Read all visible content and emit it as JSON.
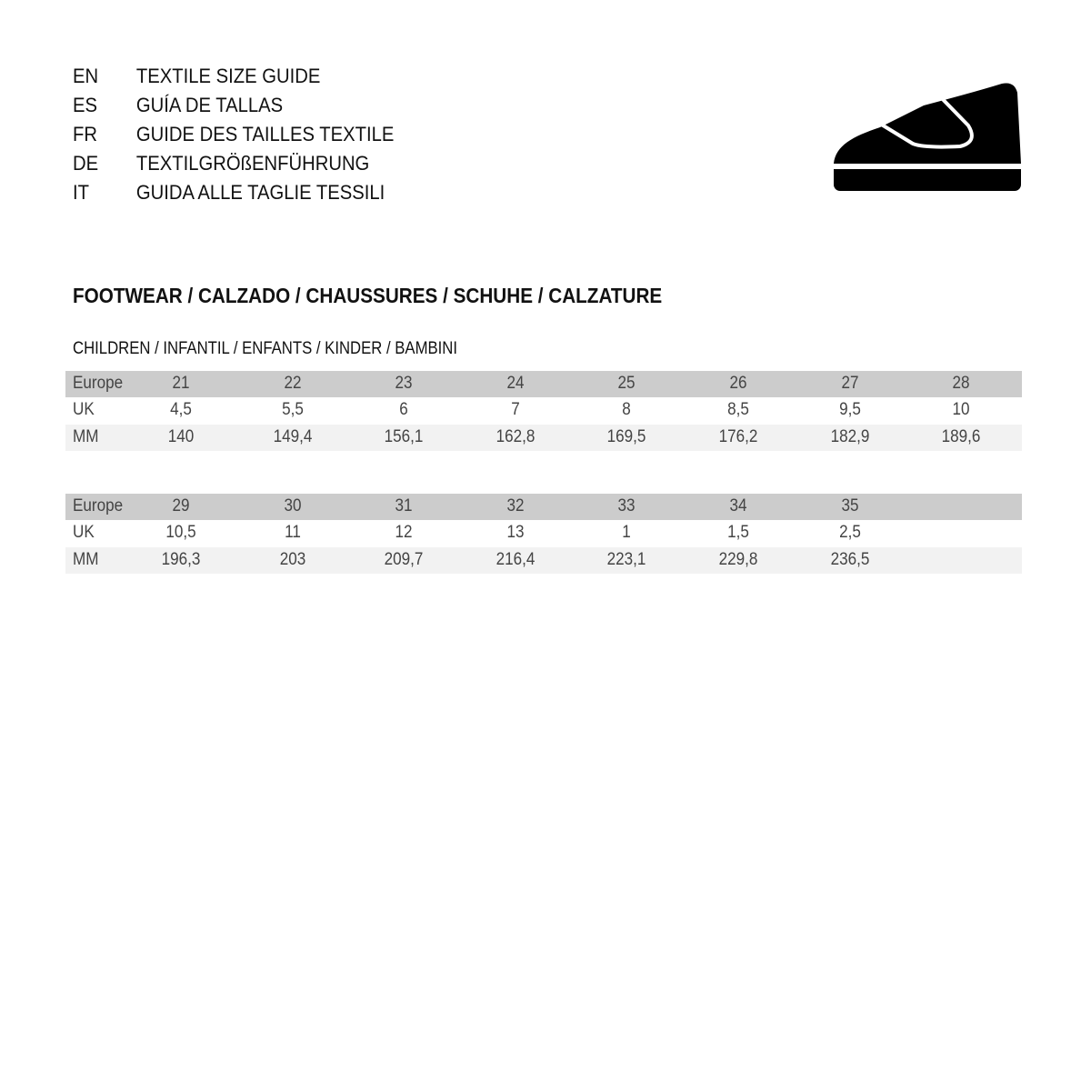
{
  "header": {
    "languages": [
      {
        "code": "EN",
        "text": "TEXTILE SIZE GUIDE"
      },
      {
        "code": "ES",
        "text": "GUÍA DE TALLAS"
      },
      {
        "code": "FR",
        "text": "GUIDE DES TAILLES TEXTILE"
      },
      {
        "code": "DE",
        "text": "TEXTILGRÖßENFÜHRUNG"
      },
      {
        "code": "IT",
        "text": "GUIDA ALLE TAGLIE TESSILI"
      }
    ],
    "icon": "shoe-icon",
    "icon_color": "#000000"
  },
  "section_title": "FOOTWEAR / CALZADO / CHAUSSURES / SCHUHE / CALZATURE",
  "subtitle": "CHILDREN / INFANTIL / ENFANTS / KINDER / BAMBINI",
  "colors": {
    "header_row": "#cccccc",
    "alt_row": "#f2f2f2"
  },
  "tables": [
    {
      "rows": [
        {
          "label": "Europe",
          "values": [
            "21",
            "22",
            "23",
            "24",
            "25",
            "26",
            "27",
            "28"
          ]
        },
        {
          "label": "UK",
          "values": [
            "4,5",
            "5,5",
            "6",
            "7",
            "8",
            "8,5",
            "9,5",
            "10"
          ]
        },
        {
          "label": "MM",
          "values": [
            "140",
            "149,4",
            "156,1",
            "162,8",
            "169,5",
            "176,2",
            "182,9",
            "189,6"
          ]
        }
      ]
    },
    {
      "rows": [
        {
          "label": "Europe",
          "values": [
            "29",
            "30",
            "31",
            "32",
            "33",
            "34",
            "35"
          ]
        },
        {
          "label": "UK",
          "values": [
            "10,5",
            "11",
            "12",
            "13",
            "1",
            "1,5",
            "2,5"
          ]
        },
        {
          "label": "MM",
          "values": [
            "196,3",
            "203",
            "209,7",
            "216,4",
            "223,1",
            "229,8",
            "236,5"
          ]
        }
      ]
    }
  ]
}
